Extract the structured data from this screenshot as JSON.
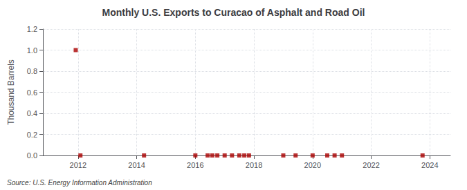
{
  "chart_data": {
    "type": "scatter",
    "title": "Monthly U.S. Exports to Curacao of Asphalt and Road Oil",
    "ylabel": "Thousand Barrels",
    "annotation": "Source: U.S. Energy Information Administration",
    "x": [
      2011.92,
      2012.08,
      2014.25,
      2016.0,
      2016.42,
      2016.58,
      2016.75,
      2017.0,
      2017.25,
      2017.5,
      2017.67,
      2017.83,
      2019.0,
      2019.42,
      2020.0,
      2020.5,
      2020.75,
      2021.0,
      2023.75
    ],
    "values": [
      1.0,
      0.0,
      0.0,
      0.0,
      0.0,
      0.0,
      0.0,
      0.0,
      0.0,
      0.0,
      0.0,
      0.0,
      0.0,
      0.0,
      0.0,
      0.0,
      0.0,
      0.0,
      0.0
    ],
    "color": "#aa0000",
    "marker": "square",
    "xlim": [
      2010.8,
      2024.7
    ],
    "xticks": [
      2012,
      2014,
      2016,
      2018,
      2020,
      2022,
      2024
    ],
    "ylim": [
      0.0,
      1.2
    ],
    "yticks": [
      {
        "value": 0.0,
        "label": "0.0"
      },
      0.2,
      0.4,
      0.6,
      0.8,
      {
        "value": 1.0,
        "label": "1.0"
      },
      1.2
    ],
    "grid": true
  }
}
